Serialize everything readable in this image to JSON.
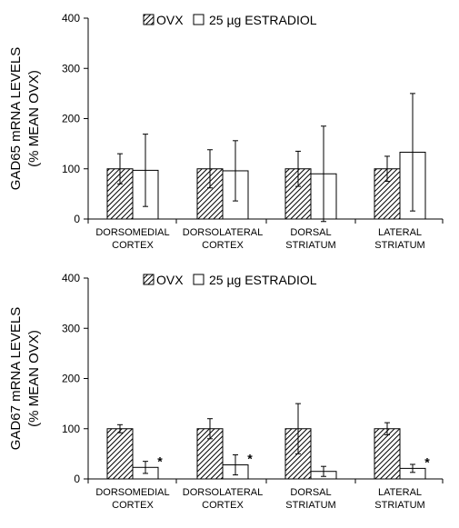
{
  "chart_data": [
    {
      "type": "bar",
      "ylabel_lines": [
        "GAD65 mRNA LEVELS",
        "(% MEAN OVX)"
      ],
      "legend": [
        "OVX",
        "25 µg ESTRADIOL"
      ],
      "legend_placement": "top",
      "ylim": [
        0,
        400
      ],
      "yticks": [
        "0",
        "100",
        "200",
        "300",
        "400"
      ],
      "categories": [
        [
          "DORSOMEDIAL",
          "CORTEX"
        ],
        [
          "DORSOLATERAL",
          "CORTEX"
        ],
        [
          "DORSAL",
          "STRIATUM"
        ],
        [
          "LATERAL",
          "STRIATUM"
        ]
      ],
      "series": [
        {
          "name": "OVX",
          "fill": "hatched",
          "values": [
            100,
            100,
            100,
            100
          ],
          "errors": [
            30,
            38,
            35,
            25
          ]
        },
        {
          "name": "25 µg ESTRADIOL",
          "fill": "white",
          "values": [
            97,
            96,
            90,
            133
          ],
          "errors": [
            72,
            60,
            95,
            117
          ]
        }
      ],
      "significance": [
        "",
        "",
        "",
        ""
      ]
    },
    {
      "type": "bar",
      "ylabel_lines": [
        "GAD67 mRNA LEVELS",
        "(% MEAN OVX)"
      ],
      "legend": [
        "OVX",
        "25 µg ESTRADIOL"
      ],
      "legend_placement": "top",
      "ylim": [
        0,
        400
      ],
      "yticks": [
        "0",
        "100",
        "200",
        "300",
        "400"
      ],
      "categories": [
        [
          "DORSOMEDIAL",
          "CORTEX"
        ],
        [
          "DORSOLATERAL",
          "CORTEX"
        ],
        [
          "DORSAL",
          "STRIATUM"
        ],
        [
          "LATERAL",
          "STRIATUM"
        ]
      ],
      "series": [
        {
          "name": "OVX",
          "fill": "hatched",
          "values": [
            100,
            100,
            100,
            100
          ],
          "errors": [
            8,
            20,
            50,
            12
          ]
        },
        {
          "name": "25 µg ESTRADIOL",
          "fill": "white",
          "values": [
            23,
            28,
            15,
            21
          ],
          "errors": [
            12,
            20,
            10,
            8
          ]
        }
      ],
      "significance": [
        "*",
        "*",
        "",
        "*"
      ]
    }
  ]
}
